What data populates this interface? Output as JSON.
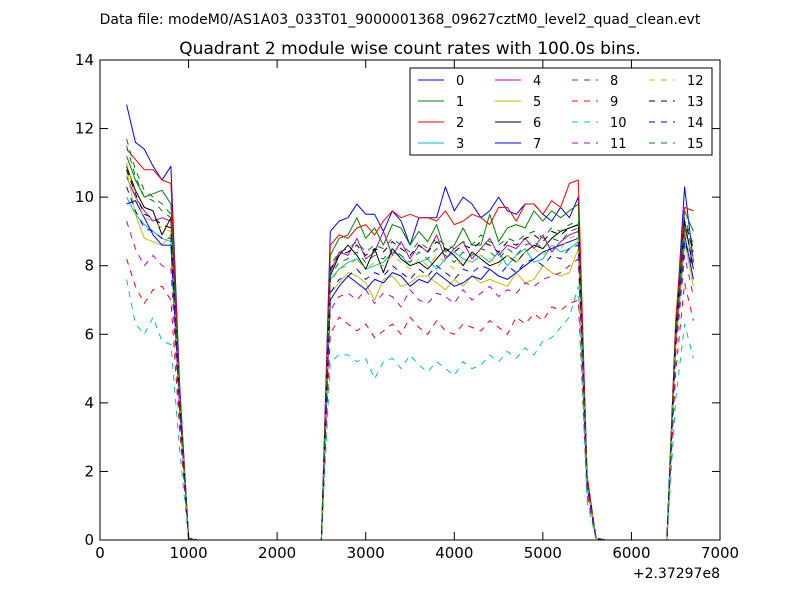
{
  "suptitle": "Data file: modeM0/AS1A03_033T01_9000001368_09627cztM0_level2_quad_clean.evt",
  "chart_data": {
    "type": "line",
    "title": "Quadrant 2 module wise count rates with 100.0s bins.",
    "xlabel": "",
    "ylabel": "",
    "x_offset_label": "+2.37297e8",
    "xlim": [
      0,
      7000
    ],
    "ylim": [
      0,
      14
    ],
    "xticks": [
      0,
      1000,
      2000,
      3000,
      4000,
      5000,
      6000,
      7000
    ],
    "yticks": [
      0,
      2,
      4,
      6,
      8,
      10,
      12,
      14
    ],
    "grid": false,
    "legend_position": "top-right",
    "legend_columns": 4,
    "x": [
      300,
      400,
      500,
      600,
      700,
      800,
      900,
      1000,
      1100,
      1200,
      1300,
      1400,
      1500,
      1600,
      1700,
      1800,
      1900,
      2000,
      2100,
      2200,
      2300,
      2400,
      2500,
      2600,
      2700,
      2800,
      2900,
      3000,
      3100,
      3200,
      3300,
      3400,
      3500,
      3600,
      3700,
      3800,
      3900,
      4000,
      4100,
      4200,
      4300,
      4400,
      4500,
      4600,
      4700,
      4800,
      4900,
      5000,
      5100,
      5200,
      5300,
      5400,
      5500,
      5600,
      5700,
      5800,
      5900,
      6000,
      6100,
      6200,
      6300,
      6400,
      6500,
      6600,
      6700
    ],
    "series": [
      {
        "name": "0",
        "color": "#0000ff",
        "dashed": false,
        "values": [
          12.7,
          11.6,
          11.4,
          10.9,
          10.5,
          10.9,
          4.5,
          0.05,
          0,
          0,
          0,
          0,
          0,
          0,
          0,
          0,
          0,
          0,
          0,
          0,
          0,
          0,
          0,
          9.0,
          9.3,
          9.4,
          9.8,
          9.5,
          9.5,
          9.0,
          9.6,
          9.3,
          8.6,
          9.4,
          9.4,
          9.4,
          10.3,
          9.6,
          10.0,
          9.8,
          9.4,
          9.6,
          10.0,
          9.6,
          9.5,
          9.8,
          9.8,
          9.5,
          9.3,
          9.7,
          9.4,
          10.0,
          1.8,
          0.05,
          0,
          0,
          0,
          0,
          0,
          0,
          0,
          0,
          6.2,
          10.3,
          8.1
        ]
      },
      {
        "name": "1",
        "color": "#008000",
        "dashed": false,
        "values": [
          11.2,
          10.5,
          10.0,
          10.1,
          10.2,
          9.8,
          4.3,
          0.05,
          0,
          0,
          0,
          0,
          0,
          0,
          0,
          0,
          0,
          0,
          0,
          0,
          0,
          0,
          0,
          8.3,
          8.8,
          8.9,
          9.4,
          8.8,
          9.1,
          8.6,
          9.2,
          9.1,
          8.6,
          9.0,
          8.7,
          9.2,
          8.4,
          8.6,
          9.1,
          8.6,
          8.6,
          9.5,
          8.7,
          9.1,
          9.2,
          9.1,
          9.6,
          9.3,
          9.6,
          9.4,
          9.6,
          9.8,
          1.8,
          0.05,
          0,
          0,
          0,
          0,
          0,
          0,
          0,
          0,
          6.3,
          9.6,
          9.0
        ]
      },
      {
        "name": "2",
        "color": "#ff0000",
        "dashed": false,
        "values": [
          11.4,
          11.1,
          10.8,
          10.8,
          10.5,
          10.4,
          4.4,
          0.05,
          0,
          0,
          0,
          0,
          0,
          0,
          0,
          0,
          0,
          0,
          0,
          0,
          0,
          0,
          0,
          8.6,
          8.9,
          8.8,
          9.1,
          9.2,
          8.9,
          9.3,
          9.6,
          9.4,
          9.5,
          9.4,
          9.4,
          9.3,
          9.6,
          9.2,
          9.3,
          9.5,
          9.4,
          9.2,
          9.7,
          9.7,
          9.3,
          9.8,
          9.8,
          9.5,
          9.9,
          9.7,
          10.4,
          10.5,
          1.9,
          0.05,
          0,
          0,
          0,
          0,
          0,
          0,
          0,
          0,
          6.4,
          9.7,
          9.6
        ]
      },
      {
        "name": "3",
        "color": "#00bfbf",
        "dashed": false,
        "values": [
          10.0,
          9.5,
          9.2,
          9.0,
          8.8,
          8.7,
          3.9,
          0.05,
          0,
          0,
          0,
          0,
          0,
          0,
          0,
          0,
          0,
          0,
          0,
          0,
          0,
          0,
          0,
          7.6,
          7.9,
          8.1,
          8.2,
          7.9,
          8.0,
          8.1,
          8.4,
          8.3,
          8.0,
          8.1,
          8.2,
          7.9,
          8.2,
          8.4,
          8.2,
          8.1,
          8.3,
          8.1,
          8.4,
          8.0,
          8.3,
          8.5,
          8.1,
          8.2,
          8.6,
          8.4,
          8.5,
          8.7,
          1.6,
          0.05,
          0,
          0,
          0,
          0,
          0,
          0,
          0,
          0,
          5.6,
          8.6,
          8.3
        ]
      },
      {
        "name": "4",
        "color": "#bf00bf",
        "dashed": false,
        "values": [
          10.6,
          10.0,
          9.6,
          9.3,
          9.4,
          9.3,
          4.1,
          0.05,
          0,
          0,
          0,
          0,
          0,
          0,
          0,
          0,
          0,
          0,
          0,
          0,
          0,
          0,
          0,
          7.8,
          8.4,
          8.3,
          8.8,
          8.2,
          8.4,
          9.0,
          8.3,
          8.7,
          8.2,
          8.6,
          8.4,
          8.9,
          8.2,
          8.5,
          8.7,
          8.2,
          8.5,
          8.8,
          8.3,
          8.6,
          8.5,
          8.8,
          8.5,
          8.9,
          8.4,
          8.7,
          8.9,
          9.0,
          1.7,
          0.05,
          0,
          0,
          0,
          0,
          0,
          0,
          0,
          0,
          6.0,
          9.1,
          8.2
        ]
      },
      {
        "name": "5",
        "color": "#bfbf00",
        "dashed": false,
        "values": [
          10.8,
          9.5,
          8.8,
          8.7,
          8.6,
          8.9,
          3.9,
          0.05,
          0,
          0,
          0,
          0,
          0,
          0,
          0,
          0,
          0,
          0,
          0,
          0,
          0,
          0,
          0,
          7.2,
          7.5,
          7.8,
          7.7,
          7.5,
          7.0,
          7.6,
          7.7,
          7.4,
          7.5,
          7.7,
          7.7,
          7.5,
          7.3,
          7.6,
          7.4,
          7.7,
          7.5,
          7.6,
          7.5,
          7.4,
          7.8,
          7.5,
          7.6,
          8.0,
          7.8,
          7.7,
          7.8,
          8.5,
          1.6,
          0.05,
          0,
          0,
          0,
          0,
          0,
          0,
          0,
          0,
          5.6,
          8.7,
          7.4
        ]
      },
      {
        "name": "6",
        "color": "#000000",
        "dashed": false,
        "values": [
          10.9,
          10.2,
          9.7,
          9.6,
          8.9,
          9.4,
          4.1,
          0.05,
          0,
          0,
          0,
          0,
          0,
          0,
          0,
          0,
          0,
          0,
          0,
          0,
          0,
          0,
          0,
          7.7,
          8.3,
          8.6,
          8.3,
          7.9,
          8.5,
          7.8,
          8.5,
          8.2,
          8.0,
          8.1,
          7.9,
          8.2,
          8.5,
          8.3,
          8.0,
          8.4,
          8.2,
          8.0,
          8.1,
          8.3,
          8.1,
          8.4,
          8.6,
          8.5,
          8.8,
          9.0,
          9.1,
          9.2,
          1.7,
          0.05,
          0,
          0,
          0,
          0,
          0,
          0,
          0,
          0,
          6.0,
          9.3,
          7.9
        ]
      },
      {
        "name": "7",
        "color": "#0000ff",
        "dashed": false,
        "values": [
          9.8,
          9.9,
          9.4,
          8.9,
          8.6,
          8.6,
          3.8,
          0.05,
          0,
          0,
          0,
          0,
          0,
          0,
          0,
          0,
          0,
          0,
          0,
          0,
          0,
          0,
          0,
          7.0,
          7.4,
          7.7,
          7.5,
          7.3,
          7.6,
          7.5,
          7.8,
          7.7,
          7.4,
          7.6,
          7.5,
          7.8,
          7.6,
          7.4,
          7.5,
          7.7,
          7.6,
          7.9,
          7.7,
          7.6,
          7.8,
          8.0,
          8.2,
          8.4,
          8.5,
          8.6,
          8.7,
          8.8,
          1.6,
          0.05,
          0,
          0,
          0,
          0,
          0,
          0,
          0,
          0,
          5.8,
          8.9,
          7.6
        ]
      },
      {
        "name": "8",
        "color": "#008000",
        "dashed": true,
        "values": [
          11.7,
          10.8,
          10.2,
          10.0,
          9.8,
          9.5,
          4.2,
          0.05,
          0,
          0,
          0,
          0,
          0,
          0,
          0,
          0,
          0,
          0,
          0,
          0,
          0,
          0,
          0,
          8.0,
          8.4,
          8.5,
          8.7,
          8.4,
          8.6,
          8.5,
          8.8,
          8.6,
          8.4,
          8.7,
          8.5,
          8.8,
          8.6,
          8.5,
          8.7,
          8.6,
          8.9,
          8.7,
          8.6,
          8.8,
          8.7,
          8.9,
          9.0,
          8.8,
          9.1,
          9.0,
          9.2,
          9.3,
          1.7,
          0.05,
          0,
          0,
          0,
          0,
          0,
          0,
          0,
          0,
          6.1,
          9.4,
          8.6
        ]
      },
      {
        "name": "9",
        "color": "#ff0000",
        "dashed": true,
        "values": [
          8.2,
          7.4,
          6.9,
          7.3,
          7.4,
          7.0,
          3.2,
          0.05,
          0,
          0,
          0,
          0,
          0,
          0,
          0,
          0,
          0,
          0,
          0,
          0,
          0,
          0,
          0,
          6.0,
          6.5,
          6.3,
          6.1,
          6.3,
          5.9,
          6.1,
          6.3,
          6.0,
          6.5,
          6.2,
          6.0,
          6.4,
          6.1,
          6.0,
          6.3,
          6.2,
          6.1,
          6.4,
          6.2,
          6.0,
          6.5,
          6.3,
          6.6,
          6.4,
          6.8,
          6.7,
          6.9,
          7.0,
          1.3,
          0.05,
          0,
          0,
          0,
          0,
          0,
          0,
          0,
          0,
          4.9,
          7.5,
          6.4
        ]
      },
      {
        "name": "10",
        "color": "#00bfbf",
        "dashed": true,
        "values": [
          7.6,
          6.3,
          6.0,
          6.5,
          5.8,
          5.7,
          2.6,
          0.05,
          0,
          0,
          0,
          0,
          0,
          0,
          0,
          0,
          0,
          0,
          0,
          0,
          0,
          0,
          0,
          5.2,
          5.4,
          5.4,
          5.2,
          5.3,
          4.7,
          5.2,
          5.3,
          5.0,
          5.4,
          5.1,
          4.9,
          5.2,
          5.0,
          4.8,
          5.2,
          5.0,
          5.1,
          5.4,
          5.2,
          5.5,
          5.3,
          5.6,
          5.4,
          5.8,
          5.9,
          6.2,
          6.5,
          7.4,
          1.1,
          0.05,
          0,
          0,
          0,
          0,
          0,
          0,
          0,
          0,
          4.1,
          6.3,
          5.3
        ]
      },
      {
        "name": "11",
        "color": "#bf00bf",
        "dashed": true,
        "values": [
          9.3,
          8.5,
          8.0,
          8.3,
          8.0,
          7.9,
          3.5,
          0.05,
          0,
          0,
          0,
          0,
          0,
          0,
          0,
          0,
          0,
          0,
          0,
          0,
          0,
          0,
          0,
          6.7,
          7.1,
          7.2,
          7.0,
          7.3,
          6.9,
          7.2,
          7.1,
          6.8,
          7.3,
          7.0,
          6.9,
          7.2,
          7.1,
          6.9,
          7.3,
          7.0,
          7.2,
          7.4,
          7.1,
          7.3,
          7.2,
          7.5,
          7.4,
          7.6,
          7.7,
          7.8,
          8.0,
          8.2,
          1.5,
          0.05,
          0,
          0,
          0,
          0,
          0,
          0,
          0,
          0,
          5.4,
          8.3,
          7.1
        ]
      },
      {
        "name": "12",
        "color": "#bfbf00",
        "dashed": true,
        "values": [
          11.0,
          10.0,
          9.4,
          9.3,
          9.1,
          9.0,
          4.0,
          0.05,
          0,
          0,
          0,
          0,
          0,
          0,
          0,
          0,
          0,
          0,
          0,
          0,
          0,
          0,
          0,
          7.5,
          7.9,
          8.0,
          8.2,
          7.9,
          8.1,
          8.0,
          8.3,
          8.1,
          7.9,
          8.2,
          8.0,
          8.3,
          8.1,
          7.9,
          8.2,
          8.1,
          8.3,
          8.2,
          8.0,
          8.3,
          8.1,
          8.4,
          8.5,
          8.3,
          8.6,
          8.5,
          8.8,
          8.9,
          1.7,
          0.05,
          0,
          0,
          0,
          0,
          0,
          0,
          0,
          0,
          5.9,
          9.0,
          8.2
        ]
      },
      {
        "name": "13",
        "color": "#000000",
        "dashed": true,
        "values": [
          10.8,
          10.1,
          9.5,
          9.4,
          9.2,
          9.1,
          4.0,
          0.05,
          0,
          0,
          0,
          0,
          0,
          0,
          0,
          0,
          0,
          0,
          0,
          0,
          0,
          0,
          0,
          7.9,
          8.3,
          8.4,
          8.6,
          8.3,
          8.5,
          8.4,
          8.7,
          8.5,
          8.3,
          8.6,
          8.4,
          8.7,
          8.5,
          8.4,
          8.6,
          8.5,
          8.7,
          8.6,
          8.4,
          8.7,
          8.6,
          8.8,
          8.9,
          8.7,
          9.0,
          8.9,
          9.1,
          9.2,
          1.7,
          0.05,
          0,
          0,
          0,
          0,
          0,
          0,
          0,
          0,
          6.1,
          9.3,
          8.5
        ]
      },
      {
        "name": "14",
        "color": "#0000ff",
        "dashed": true,
        "values": [
          10.3,
          9.6,
          9.1,
          9.0,
          8.8,
          8.8,
          3.9,
          0.05,
          0,
          0,
          0,
          0,
          0,
          0,
          0,
          0,
          0,
          0,
          0,
          0,
          0,
          0,
          0,
          7.2,
          7.6,
          7.7,
          7.9,
          7.6,
          7.8,
          7.7,
          8.0,
          7.8,
          7.6,
          7.9,
          7.7,
          8.0,
          7.8,
          7.6,
          7.9,
          7.8,
          8.0,
          7.9,
          7.7,
          8.0,
          7.8,
          8.1,
          8.2,
          8.0,
          8.3,
          8.2,
          8.5,
          8.6,
          1.6,
          0.05,
          0,
          0,
          0,
          0,
          0,
          0,
          0,
          0,
          5.8,
          8.7,
          7.9
        ]
      },
      {
        "name": "15",
        "color": "#008000",
        "dashed": true,
        "values": [
          11.5,
          10.6,
          10.0,
          9.9,
          9.6,
          9.4,
          4.1,
          0.05,
          0,
          0,
          0,
          0,
          0,
          0,
          0,
          0,
          0,
          0,
          0,
          0,
          0,
          0,
          0,
          7.7,
          8.1,
          8.2,
          8.4,
          8.1,
          8.3,
          8.2,
          8.5,
          8.3,
          8.1,
          8.4,
          8.2,
          8.5,
          8.3,
          8.1,
          8.4,
          8.3,
          8.5,
          8.4,
          8.2,
          8.5,
          8.3,
          8.6,
          8.7,
          8.5,
          8.8,
          8.7,
          9.0,
          9.1,
          1.7,
          0.05,
          0,
          0,
          0,
          0,
          0,
          0,
          0,
          0,
          6.0,
          9.2,
          8.4
        ]
      }
    ]
  }
}
